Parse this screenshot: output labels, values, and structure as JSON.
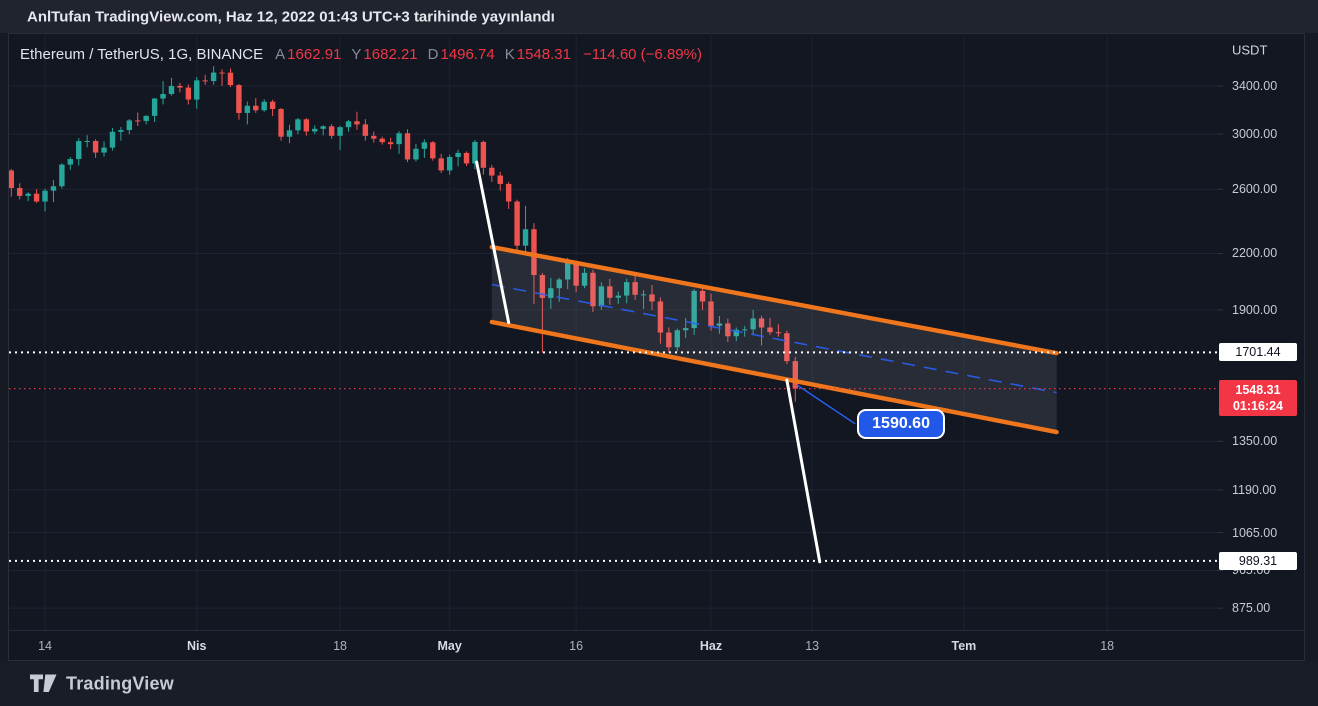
{
  "header": {
    "text": "AnlTufan TradingView.com, Haz 12, 2022 01:43 UTC+3 tarihinde yayınlandı"
  },
  "legend": {
    "symbol": "Ethereum / TetherUS, 1G, BINANCE",
    "ohlc": [
      {
        "label": "A",
        "value": "1662.91"
      },
      {
        "label": "Y",
        "value": "1682.21"
      },
      {
        "label": "D",
        "value": "1496.74"
      },
      {
        "label": "K",
        "value": "1548.31"
      }
    ],
    "change": "−114.60 (−6.89%)"
  },
  "price_scale": {
    "currency": "USDT",
    "ticks": [
      {
        "text": "3400.00",
        "price": 3400
      },
      {
        "text": "3000.00",
        "price": 3000
      },
      {
        "text": "2600.00",
        "price": 2600
      },
      {
        "text": "2200.00",
        "price": 2200
      },
      {
        "text": "1900.00",
        "price": 1900
      },
      {
        "text": "1350.00",
        "price": 1350
      },
      {
        "text": "1190.00",
        "price": 1190
      },
      {
        "text": "1065.00",
        "price": 1065
      },
      {
        "text": "965.00",
        "price": 965
      },
      {
        "text": "875.00",
        "price": 875
      }
    ],
    "badges": [
      {
        "text": "1701.44",
        "price": 1701.44,
        "type": "white"
      },
      {
        "text": "1548.31",
        "countdown": "01:16:24",
        "price": 1548.31,
        "type": "red"
      },
      {
        "text": "989.31",
        "price": 989.31,
        "type": "white"
      }
    ]
  },
  "time_scale": {
    "ticks": [
      {
        "label": "14",
        "day": 4,
        "major": false
      },
      {
        "label": "Nis",
        "day": 22,
        "major": true
      },
      {
        "label": "18",
        "day": 39,
        "major": false
      },
      {
        "label": "May",
        "day": 52,
        "major": true
      },
      {
        "label": "16",
        "day": 67,
        "major": false
      },
      {
        "label": "Haz",
        "day": 83,
        "major": true
      },
      {
        "label": "13",
        "day": 95,
        "major": false
      },
      {
        "label": "Tem",
        "day": 113,
        "major": true
      },
      {
        "label": "18",
        "day": 130,
        "major": false
      }
    ]
  },
  "footer": {
    "logo_text": "TradingView"
  },
  "colors": {
    "bg_chart": "#131722",
    "bg_header": "#20242f",
    "bg_footer": "#191d27",
    "grid": "#1d2330",
    "tick": "#2f3442",
    "up": "#26a69a",
    "down": "#ef5350",
    "orange": "#f0761d",
    "blue": "#2962ff",
    "callout_bg": "#2158e8",
    "red_value": "#f23645",
    "white": "#ffffff",
    "text_primary": "#d1d4dc",
    "text_secondary": "#b2b5be",
    "text_muted": "#868b97"
  },
  "chart_data": {
    "type": "candlestick",
    "symbol": "Ethereum / TetherUS",
    "exchange": "BINANCE",
    "interval_label": "1G",
    "currency": "USDT",
    "price_scale": "log",
    "first_candle_date": "2022-03-10",
    "last_candle_date": "2022-06-11",
    "current_ohlc": {
      "open": 1662.91,
      "high": 1682.21,
      "low": 1496.74,
      "close": 1548.31,
      "change": "−114.60 (−6.89%)"
    },
    "y_ticks": [
      3400,
      3000,
      2600,
      2200,
      1900,
      1350,
      1190,
      1065,
      965,
      875
    ],
    "candles": [
      [
        2730,
        2740,
        2550,
        2608
      ],
      [
        2608,
        2640,
        2532,
        2555
      ],
      [
        2555,
        2580,
        2520,
        2570
      ],
      [
        2570,
        2600,
        2510,
        2518
      ],
      [
        2518,
        2604,
        2454,
        2590
      ],
      [
        2590,
        2662,
        2515,
        2620
      ],
      [
        2620,
        2781,
        2605,
        2772
      ],
      [
        2772,
        2826,
        2735,
        2812
      ],
      [
        2812,
        2969,
        2765,
        2946
      ],
      [
        2946,
        2992,
        2900,
        2947
      ],
      [
        2947,
        2960,
        2820,
        2860
      ],
      [
        2860,
        2945,
        2830,
        2897
      ],
      [
        2897,
        3048,
        2875,
        3018
      ],
      [
        3018,
        3056,
        2950,
        3032
      ],
      [
        3032,
        3120,
        3000,
        3109
      ],
      [
        3109,
        3173,
        3065,
        3105
      ],
      [
        3105,
        3150,
        3078,
        3146
      ],
      [
        3146,
        3296,
        3096,
        3291
      ],
      [
        3291,
        3444,
        3241,
        3330
      ],
      [
        3330,
        3472,
        3316,
        3400
      ],
      [
        3400,
        3427,
        3345,
        3386
      ],
      [
        3386,
        3415,
        3240,
        3282
      ],
      [
        3282,
        3480,
        3205,
        3450
      ],
      [
        3450,
        3500,
        3410,
        3444
      ],
      [
        3444,
        3580,
        3412,
        3521
      ],
      [
        3521,
        3549,
        3401,
        3520
      ],
      [
        3520,
        3559,
        3390,
        3408
      ],
      [
        3408,
        3418,
        3115,
        3170
      ],
      [
        3170,
        3265,
        3077,
        3230
      ],
      [
        3230,
        3295,
        3170,
        3192
      ],
      [
        3192,
        3285,
        3180,
        3264
      ],
      [
        3264,
        3280,
        3145,
        3203
      ],
      [
        3203,
        3210,
        2950,
        2980
      ],
      [
        2980,
        3075,
        2930,
        3030
      ],
      [
        3030,
        3130,
        3000,
        3118
      ],
      [
        3118,
        3128,
        2989,
        3021
      ],
      [
        3021,
        3069,
        3000,
        3042
      ],
      [
        3042,
        3070,
        2990,
        3062
      ],
      [
        3062,
        3080,
        2964,
        2987
      ],
      [
        2987,
        3064,
        2880,
        3055
      ],
      [
        3055,
        3113,
        3020,
        3102
      ],
      [
        3102,
        3180,
        3035,
        3077
      ],
      [
        3077,
        3120,
        2950,
        2987
      ],
      [
        2987,
        3020,
        2935,
        2965
      ],
      [
        2965,
        2980,
        2920,
        2938
      ],
      [
        2938,
        2972,
        2885,
        2923
      ],
      [
        2923,
        3024,
        2850,
        3007
      ],
      [
        3007,
        3038,
        2790,
        2809
      ],
      [
        2809,
        2925,
        2795,
        2888
      ],
      [
        2888,
        2960,
        2820,
        2937
      ],
      [
        2937,
        2945,
        2800,
        2817
      ],
      [
        2817,
        2850,
        2712,
        2730
      ],
      [
        2730,
        2845,
        2700,
        2827
      ],
      [
        2827,
        2880,
        2760,
        2857
      ],
      [
        2857,
        2868,
        2762,
        2780
      ],
      [
        2780,
        2955,
        2738,
        2940
      ],
      [
        2940,
        2950,
        2700,
        2749
      ],
      [
        2749,
        2770,
        2650,
        2694
      ],
      [
        2694,
        2720,
        2590,
        2636
      ],
      [
        2636,
        2650,
        2470,
        2518
      ],
      [
        2518,
        2530,
        2220,
        2245
      ],
      [
        2245,
        2490,
        2195,
        2343
      ],
      [
        2343,
        2380,
        1930,
        2080
      ],
      [
        2080,
        2090,
        1700,
        1960
      ],
      [
        1960,
        2065,
        1905,
        2010
      ],
      [
        2010,
        2065,
        1940,
        2056
      ],
      [
        2056,
        2175,
        2005,
        2146
      ],
      [
        2146,
        2160,
        1990,
        2023
      ],
      [
        2023,
        2118,
        2010,
        2092
      ],
      [
        2092,
        2110,
        1890,
        1918
      ],
      [
        1918,
        2041,
        1900,
        2020
      ],
      [
        2020,
        2060,
        1925,
        1961
      ],
      [
        1961,
        1992,
        1930,
        1972
      ],
      [
        1972,
        2060,
        1933,
        2042
      ],
      [
        2042,
        2085,
        1950,
        1976
      ],
      [
        1976,
        2000,
        1905,
        1978
      ],
      [
        1978,
        2027,
        1900,
        1942
      ],
      [
        1942,
        1962,
        1740,
        1791
      ],
      [
        1791,
        1815,
        1700,
        1724
      ],
      [
        1724,
        1810,
        1705,
        1802
      ],
      [
        1802,
        1860,
        1766,
        1812
      ],
      [
        1812,
        2005,
        1780,
        1996
      ],
      [
        1996,
        2015,
        1900,
        1942
      ],
      [
        1942,
        1982,
        1800,
        1823
      ],
      [
        1823,
        1870,
        1785,
        1834
      ],
      [
        1834,
        1857,
        1748,
        1774
      ],
      [
        1774,
        1815,
        1752,
        1804
      ],
      [
        1804,
        1822,
        1772,
        1806
      ],
      [
        1806,
        1900,
        1782,
        1858
      ],
      [
        1858,
        1872,
        1732,
        1815
      ],
      [
        1815,
        1860,
        1780,
        1793
      ],
      [
        1793,
        1830,
        1772,
        1788
      ],
      [
        1788,
        1800,
        1650,
        1663
      ],
      [
        1662.91,
        1682.21,
        1496.74,
        1548.31
      ]
    ],
    "overlays": {
      "parallel_channel": {
        "upper": {
          "d1": 57,
          "p1": 2237,
          "d2": 124,
          "p2": 1698
        },
        "lower": {
          "d1": 57,
          "p1": 1841,
          "d2": 124,
          "p2": 1383
        },
        "line_color": "#f0761d",
        "fill": "rgba(178,186,197,0.13)",
        "mid_line_color": "#2962ff"
      },
      "trend_lines": [
        {
          "d1": 55.2,
          "p1": 2790,
          "d2": 59.0,
          "p2": 1838,
          "color": "#ffffff"
        },
        {
          "d1": 92.0,
          "p1": 1583,
          "d2": 95.9,
          "p2": 987,
          "color": "#ffffff"
        }
      ],
      "horizontal_lines": [
        {
          "price": 1701.44,
          "color": "#ffffff",
          "style": "dotted"
        },
        {
          "price": 989.31,
          "color": "#ffffff",
          "style": "dotted"
        }
      ],
      "current_price_line": {
        "price": 1548.31,
        "color": "#f23645",
        "style": "dotted"
      },
      "callout": {
        "text": "1590.60",
        "line": {
          "d1": 93.2,
          "p1": 1563,
          "d2": 100.1,
          "p2": 1413
        }
      }
    }
  }
}
